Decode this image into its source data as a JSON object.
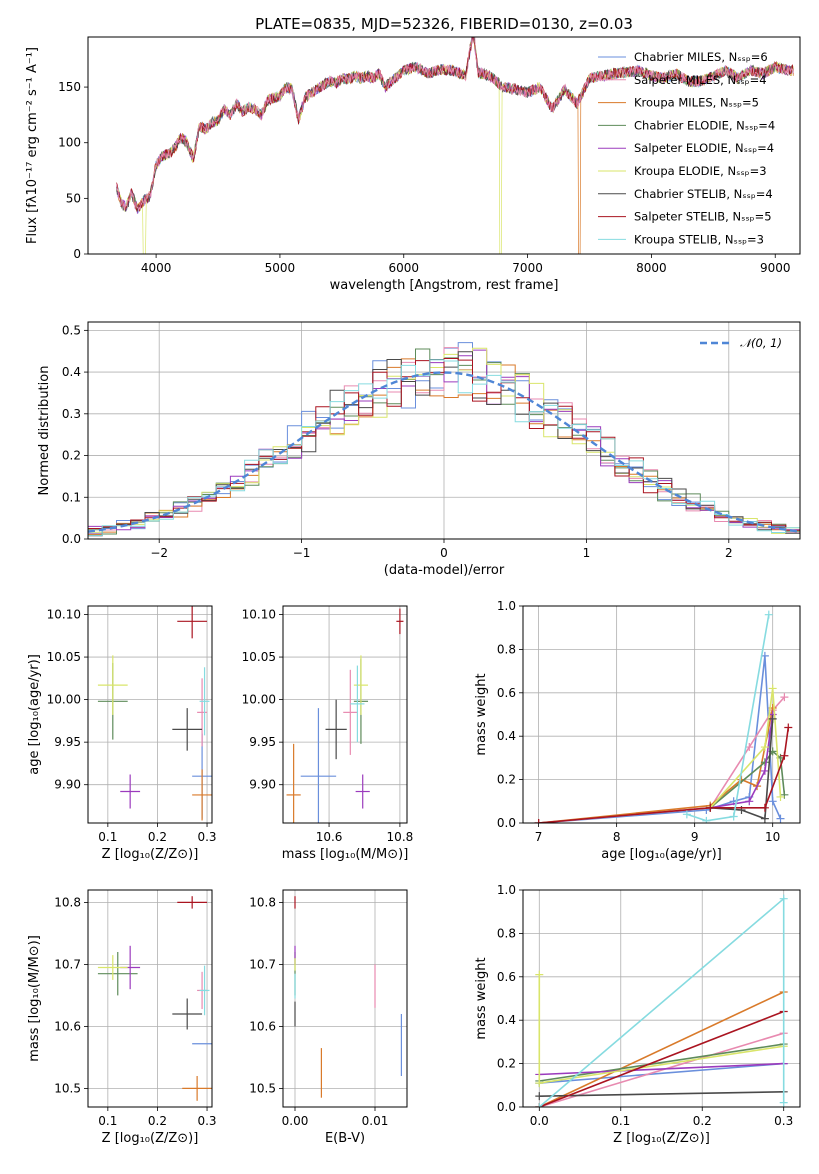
{
  "colors": [
    "#6a8fdc",
    "#e88ab0",
    "#d97a2a",
    "#5e8b5a",
    "#9b3bbd",
    "#d9e56a",
    "#4a4a4a",
    "#aa1420",
    "#86dbe0"
  ],
  "chart_data": [
    {
      "id": "spectrum",
      "type": "line",
      "title": "PLATE=0835, MJD=52326, FIBERID=0130, z=0.03",
      "xlabel": "wavelength [Angstrom, rest frame]",
      "ylabel": "Flux [fλ10⁻¹⁷ erg cm⁻² s⁻¹ A⁻¹]",
      "xlim": [
        3450,
        9200
      ],
      "ylim": [
        0,
        195
      ],
      "xticks": [
        "4000",
        "5000",
        "6000",
        "7000",
        "8000",
        "9000"
      ],
      "yticks": [
        "0",
        "50",
        "100",
        "150"
      ],
      "legend": "top-right",
      "series": [
        {
          "name": "Chabrier MILES, Nₛₛₚ=6"
        },
        {
          "name": "Salpeter MILES, Nₛₛₚ=4"
        },
        {
          "name": "Kroupa MILES, Nₛₛₚ=5"
        },
        {
          "name": "Chabrier ELODIE, Nₛₛₚ=4"
        },
        {
          "name": "Salpeter ELODIE, Nₛₛₚ=4"
        },
        {
          "name": "Kroupa ELODIE, Nₛₛₚ=3"
        },
        {
          "name": "Chabrier STELIB, Nₛₛₚ=4"
        },
        {
          "name": "Salpeter STELIB, Nₛₛₚ=5"
        },
        {
          "name": "Kroupa STELIB, Nₛₛₚ=3"
        }
      ],
      "envelope": {
        "x": [
          3680,
          3720,
          3760,
          3800,
          3850,
          3900,
          3950,
          4000,
          4050,
          4100,
          4150,
          4200,
          4250,
          4300,
          4350,
          4400,
          4450,
          4500,
          4550,
          4600,
          4650,
          4700,
          4750,
          4800,
          4850,
          4900,
          4950,
          5000,
          5050,
          5100,
          5150,
          5200,
          5250,
          5300,
          5350,
          5400,
          5450,
          5500,
          5550,
          5600,
          5650,
          5700,
          5750,
          5800,
          5850,
          5900,
          5950,
          6000,
          6100,
          6200,
          6300,
          6400,
          6500,
          6560,
          6600,
          6700,
          6800,
          6900,
          7000,
          7100,
          7200,
          7300,
          7400,
          7500,
          7600,
          7700,
          7800,
          7900,
          8000,
          8100,
          8200,
          8300,
          8400,
          8500,
          8600,
          8700,
          8800,
          8900,
          9000,
          9100
        ],
        "y": [
          60,
          45,
          42,
          55,
          40,
          48,
          52,
          80,
          88,
          90,
          95,
          105,
          100,
          85,
          115,
          112,
          118,
          120,
          130,
          125,
          135,
          128,
          132,
          130,
          125,
          138,
          140,
          142,
          150,
          148,
          120,
          140,
          145,
          148,
          152,
          155,
          153,
          158,
          157,
          160,
          158,
          160,
          158,
          162,
          150,
          155,
          160,
          165,
          168,
          162,
          166,
          165,
          160,
          200,
          163,
          160,
          150,
          148,
          145,
          150,
          130,
          148,
          135,
          158,
          160,
          162,
          163,
          165,
          160,
          158,
          162,
          155,
          155,
          160,
          165,
          158,
          165,
          162,
          168,
          165
        ]
      },
      "dips": [
        {
          "x": 3910,
          "series": "Kroupa ELODIE"
        },
        {
          "x": 6780,
          "series": "Kroupa ELODIE"
        },
        {
          "x": 7420,
          "series": "Kroupa MILES"
        }
      ]
    },
    {
      "id": "residuals",
      "type": "line",
      "xlabel": "(data-model)/error",
      "ylabel": "Normed distribution",
      "xlim": [
        -2.5,
        2.5
      ],
      "ylim": [
        0,
        0.52
      ],
      "xticks": [
        "−2",
        "−1",
        "0",
        "1",
        "2"
      ],
      "yticks": [
        "0.0",
        "0.1",
        "0.2",
        "0.3",
        "0.4",
        "0.5"
      ],
      "legend": "top-right",
      "reference": {
        "name": "𝒩(0, 1)",
        "type": "gaussian",
        "mean": 0,
        "sigma": 1
      },
      "bin_width": 0.1,
      "bin_start": -2.5
    },
    {
      "id": "age-vs-Z",
      "type": "scatter",
      "xlabel": "Z [log₁₀(Z/Z⊙)]",
      "ylabel": "age  [log₁₀(age/yr)]",
      "xlim": [
        0.06,
        0.31
      ],
      "ylim": [
        9.855,
        10.11
      ],
      "xticks": [
        "0.1",
        "0.2",
        "0.3"
      ],
      "yticks": [
        "9.90",
        "9.95",
        "10.00",
        "10.05",
        "10.10"
      ],
      "points": [
        {
          "x": 0.29,
          "y": 9.91,
          "xerr": 0.02,
          "yerr": 0.05,
          "series": 0
        },
        {
          "x": 0.29,
          "y": 9.985,
          "xerr": 0.01,
          "yerr": 0.04,
          "series": 1
        },
        {
          "x": 0.29,
          "y": 9.888,
          "xerr": 0.02,
          "yerr": 0.03,
          "series": 2
        },
        {
          "x": 0.11,
          "y": 9.998,
          "xerr": 0.03,
          "yerr": 0.045,
          "series": 3
        },
        {
          "x": 0.145,
          "y": 9.892,
          "xerr": 0.02,
          "yerr": 0.02,
          "series": 4
        },
        {
          "x": 0.11,
          "y": 10.017,
          "xerr": 0.03,
          "yerr": 0.035,
          "series": 5
        },
        {
          "x": 0.26,
          "y": 9.965,
          "xerr": 0.03,
          "yerr": 0.025,
          "series": 6
        },
        {
          "x": 0.27,
          "y": 10.092,
          "xerr": 0.03,
          "yerr": 0.02,
          "series": 7
        },
        {
          "x": 0.295,
          "y": 9.998,
          "xerr": 0.01,
          "yerr": 0.04,
          "series": 8
        }
      ]
    },
    {
      "id": "age-vs-mass",
      "type": "scatter",
      "xlabel": "mass [log₁₀(M/M⊙)]",
      "ylabel": "",
      "xlim": [
        10.47,
        10.82
      ],
      "ylim": [
        9.855,
        10.11
      ],
      "xticks": [
        "10.6",
        "10.8"
      ],
      "yticks": [
        "9.90",
        "9.95",
        "10.00",
        "10.05",
        "10.10"
      ],
      "points": [
        {
          "x": 10.57,
          "y": 9.91,
          "xerr": 0.05,
          "yerr": 0.08,
          "series": 0
        },
        {
          "x": 10.66,
          "y": 9.985,
          "xerr": 0.02,
          "yerr": 0.05,
          "series": 1
        },
        {
          "x": 10.5,
          "y": 9.888,
          "xerr": 0.02,
          "yerr": 0.06,
          "series": 2
        },
        {
          "x": 10.69,
          "y": 9.998,
          "xerr": 0.02,
          "yerr": 0.05,
          "series": 3
        },
        {
          "x": 10.695,
          "y": 9.892,
          "xerr": 0.02,
          "yerr": 0.02,
          "series": 4
        },
        {
          "x": 10.69,
          "y": 10.017,
          "xerr": 0.02,
          "yerr": 0.035,
          "series": 5
        },
        {
          "x": 10.62,
          "y": 9.965,
          "xerr": 0.03,
          "yerr": 0.035,
          "series": 6
        },
        {
          "x": 10.8,
          "y": 10.092,
          "xerr": 0.01,
          "yerr": 0.015,
          "series": 7
        },
        {
          "x": 10.68,
          "y": 9.995,
          "xerr": 0.02,
          "yerr": 0.045,
          "series": 8
        }
      ]
    },
    {
      "id": "weight-vs-age",
      "type": "line",
      "xlabel": "age  [log₁₀(age/yr)]",
      "ylabel": "mass weight",
      "xlim": [
        6.8,
        10.35
      ],
      "ylim": [
        0,
        1.0
      ],
      "xticks": [
        "7",
        "8",
        "9",
        "10"
      ],
      "yticks": [
        "0.0",
        "0.2",
        "0.4",
        "0.6",
        "0.8",
        "1.0"
      ],
      "series": [
        {
          "x": [
            7.0,
            9.15,
            9.5,
            9.7,
            9.9,
            10.0,
            10.1
          ],
          "y": [
            0.0,
            0.06,
            0.1,
            0.12,
            0.77,
            0.1,
            0.02
          ]
        },
        {
          "x": [
            7.0,
            9.2,
            9.7,
            10.0,
            10.15
          ],
          "y": [
            0.0,
            0.07,
            0.35,
            0.52,
            0.58
          ]
        },
        {
          "x": [
            7.0,
            9.2,
            9.6,
            9.8,
            10.0
          ],
          "y": [
            0.0,
            0.08,
            0.2,
            0.17,
            0.53
          ]
        },
        {
          "x": [
            9.2,
            9.9,
            10.0,
            10.1,
            10.15
          ],
          "y": [
            0.07,
            0.28,
            0.33,
            0.3,
            0.13
          ]
        },
        {
          "x": [
            9.2,
            9.7,
            9.9,
            10.0
          ],
          "y": [
            0.07,
            0.1,
            0.24,
            0.5
          ]
        },
        {
          "x": [
            9.2,
            9.9,
            10.0,
            10.1
          ],
          "y": [
            0.07,
            0.35,
            0.62,
            0.12
          ]
        },
        {
          "x": [
            9.2,
            9.6,
            9.9,
            10.0
          ],
          "y": [
            0.07,
            0.06,
            0.02,
            0.48
          ]
        },
        {
          "x": [
            7.0,
            9.2,
            9.9,
            10.15,
            10.2
          ],
          "y": [
            0.0,
            0.07,
            0.07,
            0.31,
            0.44
          ]
        },
        {
          "x": [
            8.9,
            9.15,
            9.5,
            9.95
          ],
          "y": [
            0.04,
            0.01,
            0.03,
            0.96
          ]
        }
      ]
    },
    {
      "id": "mass-vs-Z",
      "type": "scatter",
      "xlabel": "Z [log₁₀(Z/Z⊙)]",
      "ylabel": "mass [log₁₀(M/M⊙)]",
      "xlim": [
        0.06,
        0.31
      ],
      "ylim": [
        10.47,
        10.82
      ],
      "xticks": [
        "0.1",
        "0.2",
        "0.3"
      ],
      "yticks": [
        "10.5",
        "10.6",
        "10.7",
        "10.8"
      ],
      "points": [
        {
          "x": 0.29,
          "y": 10.572,
          "xerr": 0.02,
          "yerr": 0.0,
          "series": 0
        },
        {
          "x": 0.29,
          "y": 10.658,
          "xerr": 0.01,
          "yerr": 0.03,
          "series": 1
        },
        {
          "x": 0.28,
          "y": 10.5,
          "xerr": 0.03,
          "yerr": 0.02,
          "series": 2
        },
        {
          "x": 0.12,
          "y": 10.685,
          "xerr": 0.04,
          "yerr": 0.035,
          "series": 3
        },
        {
          "x": 0.145,
          "y": 10.695,
          "xerr": 0.02,
          "yerr": 0.035,
          "series": 4
        },
        {
          "x": 0.11,
          "y": 10.695,
          "xerr": 0.03,
          "yerr": 0.02,
          "series": 5
        },
        {
          "x": 0.26,
          "y": 10.62,
          "xerr": 0.03,
          "yerr": 0.025,
          "series": 6
        },
        {
          "x": 0.27,
          "y": 10.8,
          "xerr": 0.03,
          "yerr": 0.01,
          "series": 7
        },
        {
          "x": 0.295,
          "y": 10.658,
          "xerr": 0.01,
          "yerr": 0.04,
          "series": 8
        }
      ]
    },
    {
      "id": "mass-vs-ebv",
      "type": "scatter",
      "xlabel": "E(B-V)",
      "ylabel": "",
      "xlim": [
        -0.0015,
        0.014
      ],
      "ylim": [
        10.47,
        10.82
      ],
      "xticks": [
        "0.00",
        "0.01"
      ],
      "yticks": [
        "10.5",
        "10.6",
        "10.7",
        "10.8"
      ],
      "points": [
        {
          "x": 0.0133,
          "y": 10.57,
          "yerr": 0.05,
          "series": 0
        },
        {
          "x": 0.01,
          "y": 10.665,
          "yerr": 0.035,
          "series": 1
        },
        {
          "x": 0.0033,
          "y": 10.525,
          "yerr": 0.04,
          "series": 2
        },
        {
          "x": 0.0,
          "y": 10.685,
          "yerr": 0.035,
          "series": 3
        },
        {
          "x": 0.0,
          "y": 10.715,
          "yerr": 0.015,
          "series": 4
        },
        {
          "x": 0.0,
          "y": 10.7,
          "yerr": 0.01,
          "series": 5
        },
        {
          "x": 0.0,
          "y": 10.62,
          "yerr": 0.02,
          "series": 6
        },
        {
          "x": 0.0,
          "y": 10.8,
          "yerr": 0.01,
          "series": 7
        },
        {
          "x": 0.0,
          "y": 10.665,
          "yerr": 0.02,
          "series": 8
        }
      ]
    },
    {
      "id": "weight-vs-Z",
      "type": "line",
      "xlabel": "Z [log₁₀(Z/Z⊙)]",
      "ylabel": "mass weight",
      "xlim": [
        -0.02,
        0.32
      ],
      "ylim": [
        0,
        1.0
      ],
      "xticks": [
        "0.0",
        "0.1",
        "0.2",
        "0.3"
      ],
      "yticks": [
        "0.0",
        "0.2",
        "0.4",
        "0.6",
        "0.8",
        "1.0"
      ],
      "series": [
        {
          "x": [
            0.0,
            0.3
          ],
          "y": [
            0.11,
            0.2
          ]
        },
        {
          "x": [
            0.0,
            0.3
          ],
          "y": [
            0.0,
            0.34
          ]
        },
        {
          "x": [
            0.0,
            0.3
          ],
          "y": [
            0.0,
            0.53
          ]
        },
        {
          "x": [
            0.0,
            0.3
          ],
          "y": [
            0.12,
            0.29
          ]
        },
        {
          "x": [
            0.0,
            0.3
          ],
          "y": [
            0.15,
            0.2
          ]
        },
        {
          "x": [
            0.0,
            0.0,
            0.3
          ],
          "y": [
            0.61,
            0.11,
            0.28
          ]
        },
        {
          "x": [
            0.0,
            0.3
          ],
          "y": [
            0.05,
            0.07
          ]
        },
        {
          "x": [
            0.0,
            0.3
          ],
          "y": [
            0.0,
            0.44
          ]
        },
        {
          "x": [
            0.0,
            0.3,
            0.3
          ],
          "y": [
            0.0,
            0.96,
            0.02
          ]
        }
      ]
    }
  ]
}
